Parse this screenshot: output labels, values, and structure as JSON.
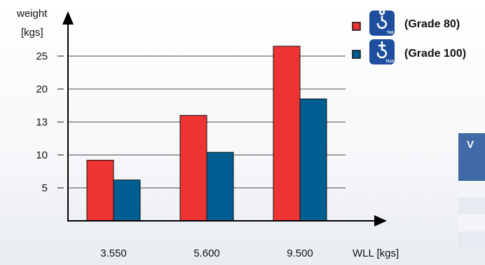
{
  "chart_data": {
    "type": "bar",
    "ylabel_lines": [
      "weight",
      "[kgs]"
    ],
    "xlabel": "WLL [kgs]",
    "categories": [
      "3.550",
      "5.600",
      "9.500"
    ],
    "y_ticks": [
      "5",
      "10",
      "13",
      "20",
      "25"
    ],
    "series": [
      {
        "name": "(Grade 80)",
        "values": [
          9.2,
          16.0,
          26.5
        ],
        "color": "#ee3333"
      },
      {
        "name": "(Grade 100)",
        "values": [
          6.2,
          10.4,
          18.5
        ],
        "color": "#005f92"
      }
    ],
    "ylim": [
      0,
      30
    ],
    "grid": true,
    "legend": "top-right"
  },
  "legend_icons": [
    {
      "icon": "lifting-hook-icon",
      "sub": "TA8"
    },
    {
      "icon": "lifting-hook-icon",
      "sub": "TA10"
    }
  ],
  "side_table": {
    "header_fragment": "V"
  }
}
